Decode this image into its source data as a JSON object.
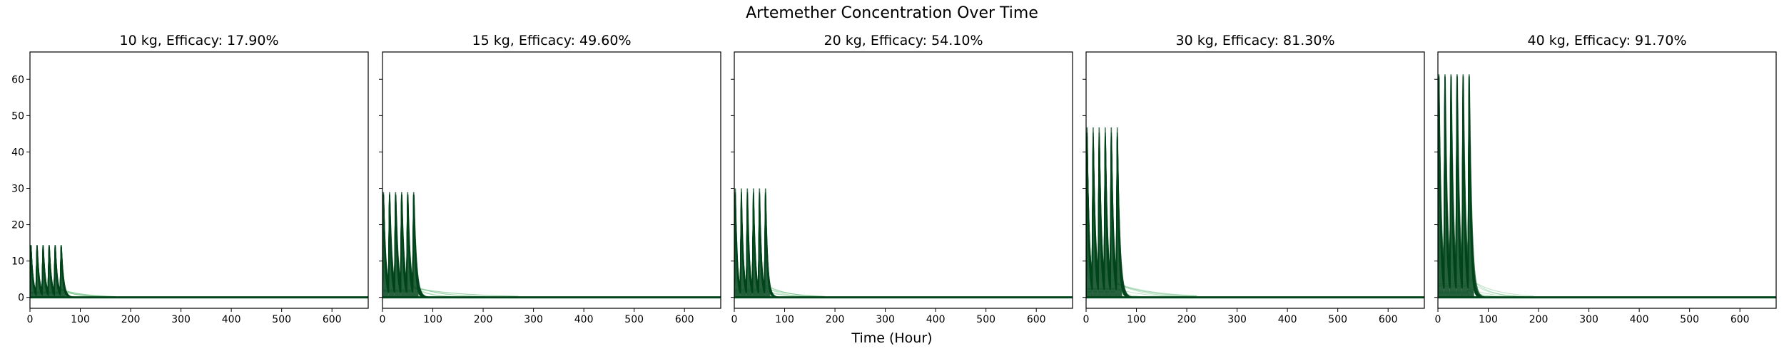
{
  "figure": {
    "title": "Artemether Concentration Over Time",
    "xlabel": "Time (Hour)"
  },
  "line_color": "#00441b",
  "line_color_light": "#41ab5d",
  "chart_data": [
    {
      "type": "line",
      "title": "10 kg, Efficacy: 17.90%",
      "xlim": [
        0,
        672
      ],
      "ylim": [
        -3,
        67.5
      ],
      "xticks": [
        0,
        100,
        200,
        300,
        400,
        500,
        600
      ],
      "yticks": [
        0,
        10,
        20,
        30,
        40,
        50,
        60
      ],
      "dose_times": [
        0,
        12,
        24,
        36,
        48,
        60
      ],
      "peak": 14.5,
      "tail_end": 110
    },
    {
      "type": "line",
      "title": "15 kg, Efficacy: 49.60%",
      "xlim": [
        0,
        672
      ],
      "ylim": [
        -3,
        67.5
      ],
      "xticks": [
        0,
        100,
        200,
        300,
        400,
        500,
        600
      ],
      "yticks": [
        0,
        10,
        20,
        30,
        40,
        50,
        60
      ],
      "dose_times": [
        0,
        12,
        24,
        36,
        48,
        60
      ],
      "peak": 30,
      "tail_end": 210
    },
    {
      "type": "line",
      "title": "20 kg, Efficacy: 54.10%",
      "xlim": [
        0,
        672
      ],
      "ylim": [
        -3,
        67.5
      ],
      "xticks": [
        0,
        100,
        200,
        300,
        400,
        500,
        600
      ],
      "yticks": [
        0,
        10,
        20,
        30,
        40,
        50,
        60
      ],
      "dose_times": [
        0,
        12,
        24,
        36,
        48,
        60
      ],
      "peak": 30,
      "tail_end": 120
    },
    {
      "type": "line",
      "title": "30 kg, Efficacy: 81.30%",
      "xlim": [
        0,
        672
      ],
      "ylim": [
        -3,
        67.5
      ],
      "xticks": [
        0,
        100,
        200,
        300,
        400,
        500,
        600
      ],
      "yticks": [
        0,
        10,
        20,
        30,
        40,
        50,
        60
      ],
      "dose_times": [
        0,
        12,
        24,
        36,
        48,
        60
      ],
      "peak": 47,
      "tail_end": 160
    },
    {
      "type": "line",
      "title": "40 kg, Efficacy: 91.70%",
      "xlim": [
        0,
        672
      ],
      "ylim": [
        -3,
        67.5
      ],
      "xticks": [
        0,
        100,
        200,
        300,
        400,
        500,
        600
      ],
      "yticks": [
        0,
        10,
        20,
        30,
        40,
        50,
        60
      ],
      "dose_times": [
        0,
        12,
        24,
        36,
        48,
        60
      ],
      "peak": 64,
      "tail_end": 130
    }
  ]
}
